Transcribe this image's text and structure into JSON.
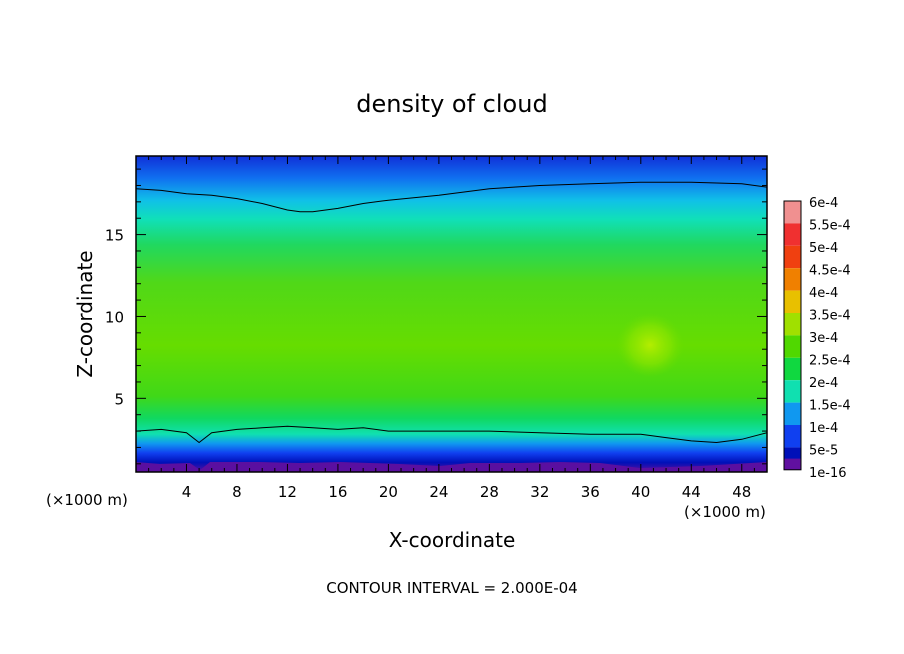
{
  "chart_data": {
    "type": "heatmap",
    "title": "density of cloud",
    "xlabel": "X-coordinate",
    "ylabel": "Z-coordinate",
    "x_unit_left": "(×1000 m)",
    "x_unit_right": "(×1000 m)",
    "footer": "CONTOUR INTERVAL = 2.000E-04",
    "xlim": [
      0,
      50
    ],
    "ylim": [
      0.5,
      19.8
    ],
    "xticks": [
      4,
      8,
      12,
      16,
      20,
      24,
      28,
      32,
      36,
      40,
      44,
      48
    ],
    "xtick_labels": [
      "4",
      "8",
      "12",
      "16",
      "20",
      "24",
      "28",
      "32",
      "36",
      "40",
      "44",
      "48"
    ],
    "yticks": [
      5,
      10,
      15
    ],
    "ytick_labels": [
      "5",
      "10",
      "15"
    ],
    "colorbar": {
      "labels": [
        "6e-4",
        "5.5e-4",
        "5e-4",
        "4.5e-4",
        "4e-4",
        "3.5e-4",
        "3e-4",
        "2.5e-4",
        "2e-4",
        "1.5e-4",
        "1e-4",
        "5e-5",
        "1e-16"
      ],
      "values": [
        0.0006,
        0.00055,
        0.0005,
        0.00045,
        0.0004,
        0.00035,
        0.0003,
        0.00025,
        0.0002,
        0.00015,
        0.0001,
        5e-05,
        1e-16
      ],
      "colors": [
        "#f09090",
        "#f03030",
        "#f04010",
        "#f08000",
        "#e8c000",
        "#a0e000",
        "#50d800",
        "#10d840",
        "#10e0b0",
        "#1098f0",
        "#1040f0",
        "#0010b8",
        "#6010a0"
      ]
    },
    "contour_levels": [
      {
        "level": 0.0002,
        "position": "top",
        "x": [
          0,
          2,
          4,
          6,
          8,
          10,
          12,
          13,
          14,
          16,
          18,
          20,
          24,
          28,
          32,
          36,
          40,
          44,
          48,
          50
        ],
        "z": [
          17.8,
          17.7,
          17.5,
          17.4,
          17.2,
          16.9,
          16.5,
          16.4,
          16.4,
          16.6,
          16.9,
          17.1,
          17.4,
          17.8,
          18.0,
          18.1,
          18.2,
          18.2,
          18.1,
          17.9
        ]
      },
      {
        "level": 0.0002,
        "position": "bottom",
        "x": [
          0,
          2,
          4,
          5,
          6,
          8,
          10,
          12,
          14,
          16,
          18,
          20,
          24,
          28,
          32,
          36,
          40,
          42,
          44,
          46,
          48,
          50
        ],
        "z": [
          3.0,
          3.1,
          2.9,
          2.3,
          2.9,
          3.1,
          3.2,
          3.3,
          3.2,
          3.1,
          3.2,
          3.0,
          3.0,
          3.0,
          2.9,
          2.8,
          2.8,
          2.6,
          2.4,
          2.3,
          2.5,
          2.9
        ]
      }
    ],
    "grid": false,
    "legend_position": "right"
  }
}
